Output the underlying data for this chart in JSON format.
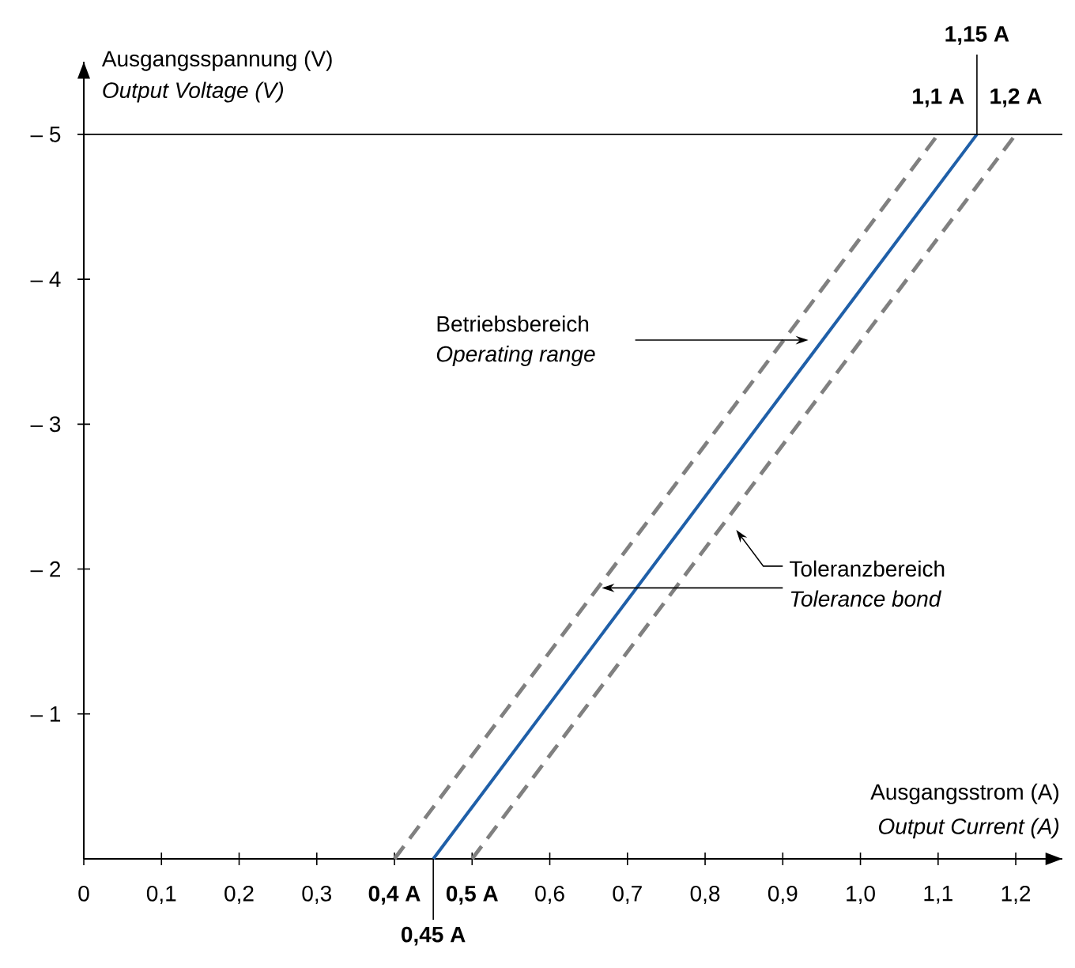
{
  "chart_data": {
    "type": "line",
    "xlim": [
      0,
      1.26
    ],
    "ylim": [
      0,
      -5.5
    ],
    "xticks": [
      0,
      {
        "value": 0.1,
        "label": "0,1"
      },
      {
        "value": 0.2,
        "label": "0,2"
      },
      {
        "value": 0.3,
        "label": "0,3"
      },
      {
        "value": 0.4,
        "label": "**0,4 A**"
      },
      {
        "value": 0.5,
        "label": "**0,5 A**"
      },
      {
        "value": 0.6,
        "label": "0,6"
      },
      {
        "value": 0.7,
        "label": "0,7"
      },
      {
        "value": 0.8,
        "label": "0,8"
      },
      {
        "value": 0.9,
        "label": "0,9"
      },
      {
        "value": 1.0,
        "label": "1,0"
      },
      {
        "value": 1.1,
        "label": "1,1"
      },
      {
        "value": 1.2,
        "label": "1,2"
      }
    ],
    "yticks": [
      {
        "value": -1,
        "label": "– 1"
      },
      {
        "value": -2,
        "label": "– 2"
      },
      {
        "value": -3,
        "label": "– 3"
      },
      {
        "value": -4,
        "label": "– 4"
      },
      {
        "value": -5,
        "label": "– 5"
      }
    ],
    "xlabel": "Ausgangsstrom (A)",
    "ylabel": "Ausgangsspannung (V)",
    "series": [
      {
        "x": [
          0.45,
          1.15
        ],
        "values": [
          0,
          -5
        ],
        "color": "#1f5fa8",
        "line_style": "solid"
      },
      {
        "x": [
          0.4,
          1.1
        ],
        "values": [
          0,
          -5
        ],
        "color": "#808080",
        "line_style": "dashed"
      },
      {
        "x": [
          0.5,
          1.2
        ],
        "values": [
          0,
          -5
        ],
        "color": "#808080",
        "line_style": "dashed"
      }
    ],
    "ref_lines": [
      {
        "axis": "y",
        "value": -5,
        "label": null,
        "color": "#000000"
      }
    ],
    "marker": "none",
    "annotations": [
      "Betriebsbereich",
      "Operating range",
      {
        "text": "Toleranzbereich",
        "x": 0.667,
        "y": -1.87
      },
      "Tolerance bond",
      {
        "text": "1,15 A",
        "x": 1.15,
        "y": -5
      },
      {
        "text": "1,1 A",
        "x": 1.1,
        "y": -5
      },
      {
        "text": "1,2 A",
        "x": 1.2,
        "y": -5
      },
      {
        "text": "0,45 A",
        "x": 0.45,
        "y": 0
      },
      "Output Voltage (V)",
      "Output Current (A)"
    ]
  }
}
